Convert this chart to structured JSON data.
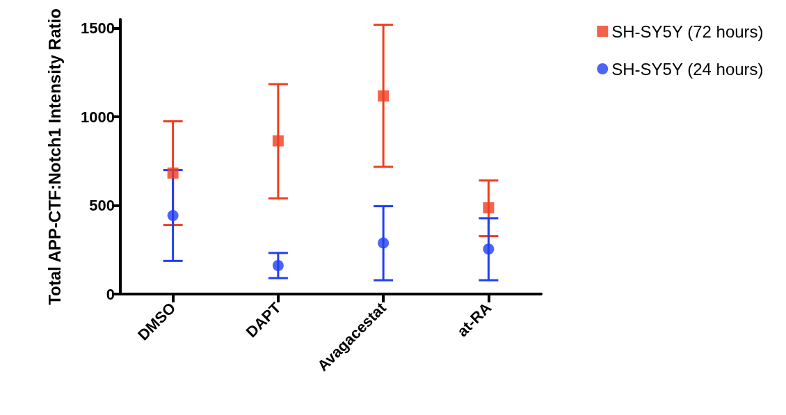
{
  "chart_data": {
    "type": "scatter",
    "ylabel": "Total APP-CTF:Notch1 Intensity Ratio",
    "categories": [
      "DMSO",
      "DAPT",
      "Avagacestat",
      "at-RA"
    ],
    "series": [
      {
        "name": "SH-SY5Y (72 hours)",
        "color": "#f03c1e",
        "marker": "square",
        "values": [
          683,
          865,
          1118,
          487
        ],
        "errors": [
          [
            390,
            975
          ],
          [
            540,
            1185
          ],
          [
            718,
            1520
          ],
          [
            327,
            641
          ]
        ]
      },
      {
        "name": "SH-SY5Y (24 hours)",
        "color": "#1f3ff5",
        "marker": "circle",
        "values": [
          443,
          161,
          288,
          254
        ],
        "errors": [
          [
            187,
            700
          ],
          [
            90,
            232
          ],
          [
            78,
            496
          ],
          [
            78,
            428
          ]
        ]
      }
    ],
    "ylim": [
      0,
      1550
    ],
    "yticks": [
      0,
      500,
      1000,
      1500
    ],
    "grid": false,
    "legend": "top right"
  }
}
